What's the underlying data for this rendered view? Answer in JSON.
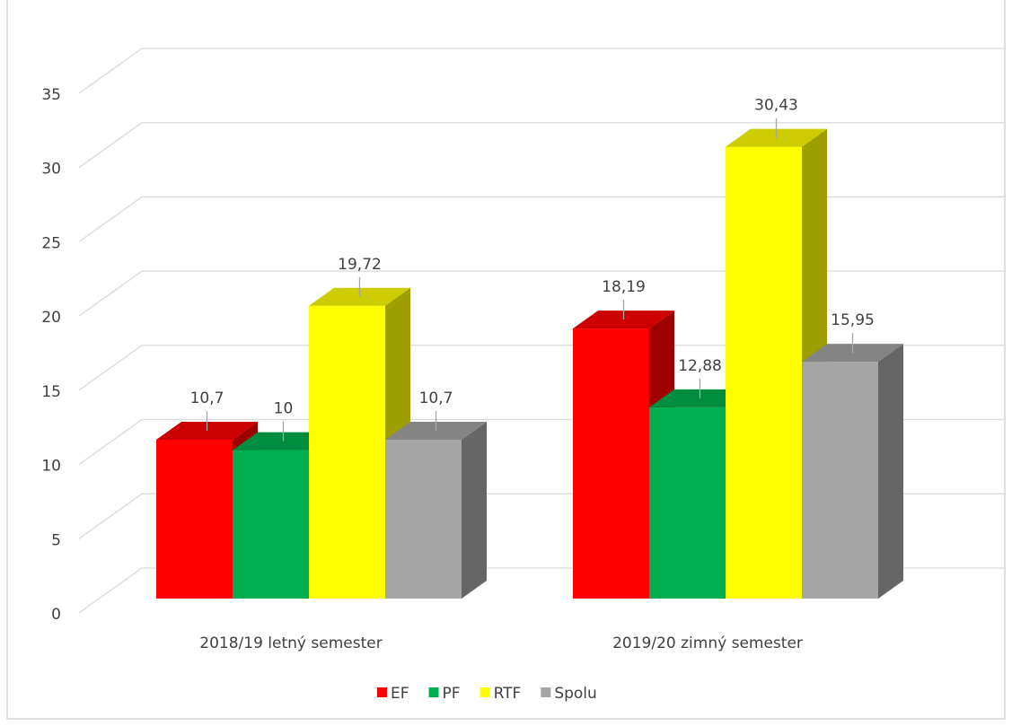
{
  "chart_data": {
    "type": "bar3d",
    "categories": [
      "2018/19 letný semester",
      "2019/20 zimný semester"
    ],
    "series": [
      {
        "name": "EF",
        "color": "#ff0000",
        "values": [
          10.7,
          18.19
        ],
        "value_labels": [
          "10,7",
          "18,19"
        ]
      },
      {
        "name": "PF",
        "color": "#00b050",
        "values": [
          10,
          12.88
        ],
        "value_labels": [
          "10",
          "12,88"
        ]
      },
      {
        "name": "RTF",
        "color": "#ffff00",
        "values": [
          19.72,
          30.43
        ],
        "value_labels": [
          "19,72",
          "30,43"
        ]
      },
      {
        "name": "Spolu",
        "color": "#a5a5a5",
        "values": [
          10.7,
          15.95
        ],
        "value_labels": [
          "10,7",
          "15,95"
        ]
      }
    ],
    "ylim": [
      0,
      35
    ],
    "yticks": [
      0,
      5,
      10,
      15,
      20,
      25,
      30,
      35
    ],
    "grid": true,
    "legend": "bottom"
  }
}
